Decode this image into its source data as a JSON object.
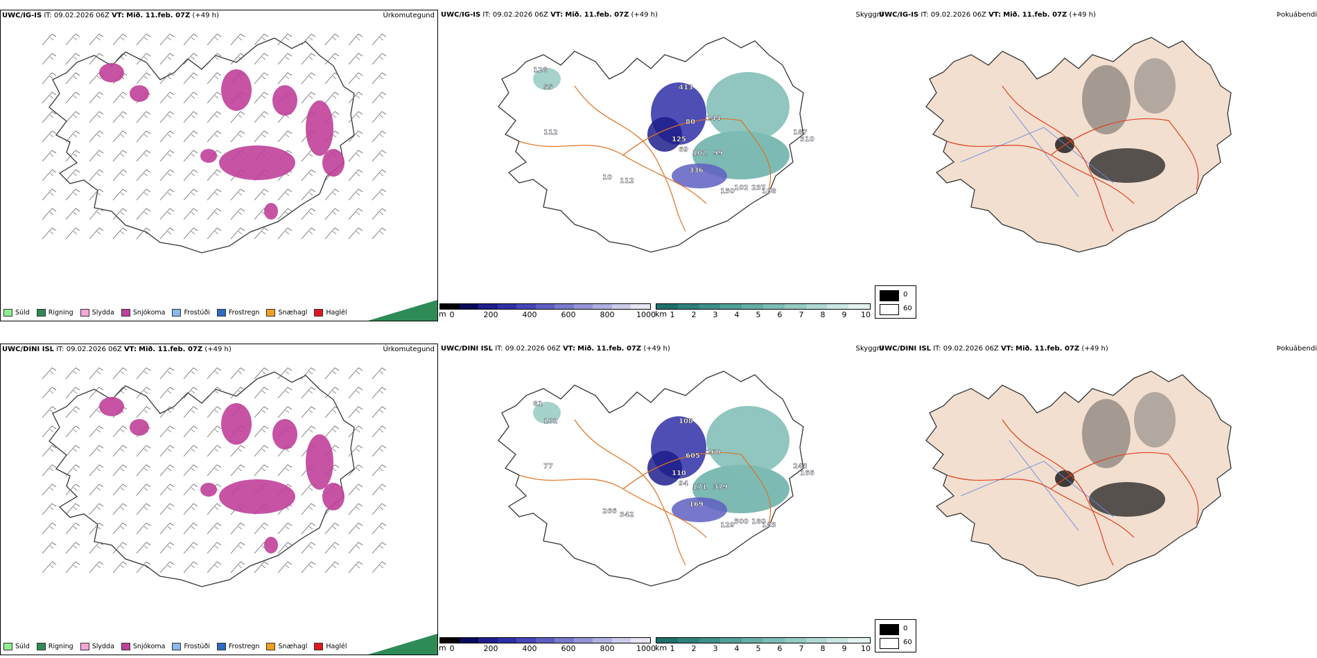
{
  "rows": [
    {
      "model": "UWC/IG-IS",
      "it_label": "IT:",
      "it_value": "09.02.2026 06Z",
      "vt_label": "VT:",
      "vt_value": "Mið. 11.feb. 07Z",
      "lead": "(+49 h)"
    },
    {
      "model": "UWC/DINI ISL",
      "it_label": "IT:",
      "it_value": "09.02.2026 06Z",
      "vt_label": "VT:",
      "vt_value": "Mið. 11.feb. 07Z",
      "lead": "(+49 h)"
    }
  ],
  "panel_titles": {
    "precip": "Úrkomutegund",
    "cloud": "Skyggni",
    "fog": "Þokuábendi"
  },
  "precip_legend": [
    {
      "label": "Súld",
      "color": "#90ee90"
    },
    {
      "label": "Rigning",
      "color": "#2e8b57"
    },
    {
      "label": "Slydda",
      "color": "#f4a6d7"
    },
    {
      "label": "Snjókoma",
      "color": "#c0409a"
    },
    {
      "label": "Frostúði",
      "color": "#87b9ee"
    },
    {
      "label": "Frostregn",
      "color": "#2b6cc4"
    },
    {
      "label": "Snæhagl",
      "color": "#f0a020"
    },
    {
      "label": "Haglél",
      "color": "#e0181e"
    }
  ],
  "ceiling_bar": {
    "unit": "m",
    "ticks": [
      "0",
      "200",
      "400",
      "600",
      "800",
      "1000"
    ],
    "colors": [
      "#000000",
      "#0a0a5c",
      "#1e1e8c",
      "#2f2fa8",
      "#4545b8",
      "#5f5fc2",
      "#7a7acc",
      "#9595d6",
      "#b0b0e0",
      "#ccccea",
      "#e6e6f4"
    ]
  },
  "vis_bar": {
    "unit": "km",
    "ticks": [
      "1",
      "2",
      "3",
      "4",
      "5",
      "6",
      "7",
      "8",
      "9",
      "10"
    ],
    "colors": [
      "#1f6f6a",
      "#2f807a",
      "#3f8f89",
      "#51a098",
      "#66aea6",
      "#7dbcb4",
      "#96cac3",
      "#b0d8d2",
      "#cae6e1",
      "#e4f3f1"
    ]
  },
  "fog_legend": [
    {
      "label": "0",
      "color": "#000000"
    },
    {
      "label": "60",
      "color": "#ffffff"
    }
  ],
  "vis_labels_top": [
    "128",
    "55",
    "112",
    "413",
    "80",
    "125",
    "69",
    "102",
    "336",
    "99",
    "150",
    "102",
    "237",
    "108",
    "244",
    "187",
    "310",
    "112",
    "10"
  ],
  "vis_labels_bottom": [
    "81",
    "102",
    "77",
    "108",
    "605",
    "110",
    "94",
    "171",
    "169",
    "379",
    "129",
    "500",
    "180",
    "183",
    "260",
    "243",
    "166",
    "342",
    "266"
  ]
}
